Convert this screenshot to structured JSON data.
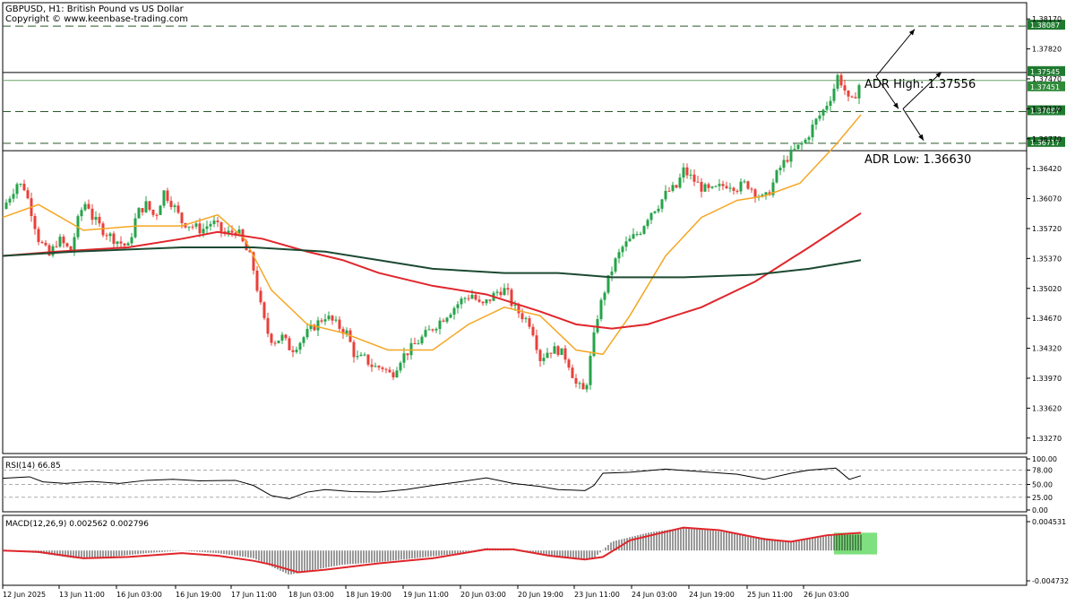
{
  "header": {
    "title": "GBPUSD, H1:  British Pound vs US Dollar",
    "copyright": "Copyright © www.keenbase-trading.com"
  },
  "colors": {
    "bull": "#26a34a",
    "bear": "#e8403a",
    "ma_fast": "#f5a623",
    "ma_mid": "#e0262b",
    "ma_slow": "#1c4a32",
    "level_tag_bg": "#1f7a2f",
    "adr_line": "#555555",
    "histogram_highlight": "#7ee07e"
  },
  "chart_data": {
    "type": "candlestick",
    "symbol": "GBPUSD",
    "timeframe": "H1",
    "ylim": [
      1.331,
      1.3835
    ],
    "y_ticks": [
      "1.38170",
      "1.37820",
      "1.37470",
      "1.37120",
      "1.36770",
      "1.36420",
      "1.36070",
      "1.35720",
      "1.35370",
      "1.35020",
      "1.34670",
      "1.34320",
      "1.33970",
      "1.33620",
      "1.33270"
    ],
    "x_ticks": [
      "12 Jun 2025",
      "13 Jun 11:00",
      "16 Jun 03:00",
      "16 Jun 19:00",
      "17 Jun 11:00",
      "18 Jun 03:00",
      "18 Jun 19:00",
      "19 Jun 11:00",
      "20 Jun 03:00",
      "20 Jun 19:00",
      "23 Jun 11:00",
      "24 Jun 03:00",
      "24 Jun 19:00",
      "25 Jun 11:00",
      "26 Jun 03:00"
    ],
    "close_path": [
      [
        0,
        1.3595
      ],
      [
        16,
        1.3625
      ],
      [
        24,
        1.362
      ],
      [
        30,
        1.36
      ],
      [
        40,
        1.356
      ],
      [
        52,
        1.354
      ],
      [
        62,
        1.356
      ],
      [
        76,
        1.3545
      ],
      [
        86,
        1.359
      ],
      [
        94,
        1.3605
      ],
      [
        100,
        1.3585
      ],
      [
        112,
        1.357
      ],
      [
        124,
        1.356
      ],
      [
        140,
        1.355
      ],
      [
        150,
        1.359
      ],
      [
        160,
        1.36
      ],
      [
        170,
        1.3585
      ],
      [
        180,
        1.3615
      ],
      [
        190,
        1.36
      ],
      [
        200,
        1.358
      ],
      [
        212,
        1.3575
      ],
      [
        222,
        1.357
      ],
      [
        234,
        1.358
      ],
      [
        248,
        1.3565
      ],
      [
        262,
        1.357
      ],
      [
        270,
        1.355
      ],
      [
        278,
        1.3535
      ],
      [
        290,
        1.347
      ],
      [
        296,
        1.345
      ],
      [
        302,
        1.344
      ],
      [
        312,
        1.3445
      ],
      [
        322,
        1.343
      ],
      [
        332,
        1.344
      ],
      [
        340,
        1.345
      ],
      [
        350,
        1.346
      ],
      [
        360,
        1.347
      ],
      [
        372,
        1.346
      ],
      [
        384,
        1.345
      ],
      [
        394,
        1.342
      ],
      [
        404,
        1.342
      ],
      [
        414,
        1.341
      ],
      [
        424,
        1.341
      ],
      [
        434,
        1.34
      ],
      [
        444,
        1.342
      ],
      [
        454,
        1.343
      ],
      [
        464,
        1.344
      ],
      [
        474,
        1.345
      ],
      [
        484,
        1.346
      ],
      [
        494,
        1.347
      ],
      [
        504,
        1.348
      ],
      [
        514,
        1.349
      ],
      [
        524,
        1.3495
      ],
      [
        534,
        1.348
      ],
      [
        544,
        1.349
      ],
      [
        554,
        1.35
      ],
      [
        562,
        1.35
      ],
      [
        570,
        1.348
      ],
      [
        580,
        1.347
      ],
      [
        590,
        1.346
      ],
      [
        600,
        1.342
      ],
      [
        610,
        1.343
      ],
      [
        620,
        1.343
      ],
      [
        630,
        1.342
      ],
      [
        640,
        1.339
      ],
      [
        650,
        1.338
      ],
      [
        656,
        1.342
      ],
      [
        664,
        1.347
      ],
      [
        672,
        1.35
      ],
      [
        682,
        1.353
      ],
      [
        692,
        1.355
      ],
      [
        702,
        1.356
      ],
      [
        712,
        1.357
      ],
      [
        722,
        1.359
      ],
      [
        732,
        1.36
      ],
      [
        742,
        1.3615
      ],
      [
        752,
        1.362
      ],
      [
        760,
        1.364
      ],
      [
        770,
        1.363
      ],
      [
        780,
        1.362
      ],
      [
        790,
        1.3615
      ],
      [
        800,
        1.362
      ],
      [
        810,
        1.3625
      ],
      [
        820,
        1.362
      ],
      [
        830,
        1.3625
      ],
      [
        840,
        1.3615
      ],
      [
        850,
        1.3605
      ],
      [
        858,
        1.362
      ],
      [
        866,
        1.364
      ],
      [
        876,
        1.3655
      ],
      [
        886,
        1.3665
      ],
      [
        896,
        1.3675
      ],
      [
        906,
        1.3695
      ],
      [
        916,
        1.371
      ],
      [
        926,
        1.373
      ],
      [
        932,
        1.375
      ],
      [
        938,
        1.374
      ],
      [
        946,
        1.3715
      ],
      [
        952,
        1.373
      ],
      [
        958,
        1.3745
      ]
    ],
    "series": [
      {
        "points": [
          [
            0,
            1.3585
          ],
          [
            40,
            1.36
          ],
          [
            90,
            1.357
          ],
          [
            150,
            1.3575
          ],
          [
            200,
            1.3575
          ],
          [
            240,
            1.3588
          ],
          [
            270,
            1.356
          ],
          [
            300,
            1.35
          ],
          [
            340,
            1.346
          ],
          [
            380,
            1.345
          ],
          [
            430,
            1.343
          ],
          [
            480,
            1.343
          ],
          [
            520,
            1.346
          ],
          [
            560,
            1.348
          ],
          [
            600,
            1.347
          ],
          [
            640,
            1.343
          ],
          [
            670,
            1.3425
          ],
          [
            700,
            1.347
          ],
          [
            740,
            1.354
          ],
          [
            780,
            1.3585
          ],
          [
            820,
            1.3605
          ],
          [
            850,
            1.361
          ],
          [
            890,
            1.3625
          ],
          [
            930,
            1.367
          ],
          [
            958,
            1.3705
          ]
        ]
      },
      {
        "points": [
          [
            0,
            1.354
          ],
          [
            60,
            1.3545
          ],
          [
            140,
            1.355
          ],
          [
            200,
            1.356
          ],
          [
            240,
            1.3568
          ],
          [
            290,
            1.356
          ],
          [
            340,
            1.3545
          ],
          [
            380,
            1.3535
          ],
          [
            420,
            1.352
          ],
          [
            480,
            1.3505
          ],
          [
            540,
            1.3495
          ],
          [
            600,
            1.3475
          ],
          [
            640,
            1.346
          ],
          [
            680,
            1.3455
          ],
          [
            720,
            1.346
          ],
          [
            780,
            1.348
          ],
          [
            840,
            1.351
          ],
          [
            900,
            1.355
          ],
          [
            958,
            1.359
          ]
        ]
      },
      {
        "points": [
          [
            0,
            1.354
          ],
          [
            80,
            1.3545
          ],
          [
            200,
            1.355
          ],
          [
            280,
            1.355
          ],
          [
            360,
            1.3545
          ],
          [
            420,
            1.3535
          ],
          [
            480,
            1.3525
          ],
          [
            560,
            1.352
          ],
          [
            620,
            1.352
          ],
          [
            680,
            1.3515
          ],
          [
            760,
            1.3515
          ],
          [
            840,
            1.3518
          ],
          [
            900,
            1.3525
          ],
          [
            958,
            1.3535
          ]
        ]
      }
    ],
    "levels": [
      {
        "value": 1.38087,
        "label": "1.38087",
        "style": "dashed"
      },
      {
        "value": 1.37545,
        "label": "1.37545",
        "style": "solid"
      },
      {
        "value": 1.37451,
        "label": "1.37451",
        "style": "current"
      },
      {
        "value": 1.37087,
        "label": "1.37087",
        "style": "dashed"
      },
      {
        "value": 1.36717,
        "label": "1.36717",
        "style": "dashed"
      },
      {
        "value": 1.3663,
        "label": "",
        "style": "solid"
      }
    ],
    "annotations": [
      {
        "text": "ADR High: 1.37556"
      },
      {
        "text": "ADR Low: 1.36630"
      }
    ],
    "arrows": [
      {
        "from": [
          975,
          1.375
        ],
        "to": [
          1018,
          1.3805
        ]
      },
      {
        "from": [
          975,
          1.375
        ],
        "to": [
          1000,
          1.3712
        ]
      },
      {
        "from": [
          1005,
          1.3712
        ],
        "to": [
          1048,
          1.3755
        ]
      },
      {
        "from": [
          1005,
          1.3712
        ],
        "to": [
          1028,
          1.3675
        ]
      }
    ],
    "rsi": {
      "label": "RSI(14) 66.85",
      "ylim": [
        0,
        100
      ],
      "ticks": [
        "100.00",
        "78.00",
        "50.00",
        "25.00",
        "0.00"
      ],
      "path": [
        [
          0,
          62
        ],
        [
          30,
          65
        ],
        [
          45,
          55
        ],
        [
          70,
          52
        ],
        [
          100,
          56
        ],
        [
          130,
          52
        ],
        [
          160,
          58
        ],
        [
          190,
          60
        ],
        [
          220,
          57
        ],
        [
          260,
          58
        ],
        [
          280,
          48
        ],
        [
          300,
          28
        ],
        [
          320,
          22
        ],
        [
          340,
          35
        ],
        [
          360,
          40
        ],
        [
          390,
          36
        ],
        [
          420,
          35
        ],
        [
          450,
          40
        ],
        [
          480,
          48
        ],
        [
          510,
          55
        ],
        [
          540,
          63
        ],
        [
          570,
          52
        ],
        [
          600,
          46
        ],
        [
          620,
          40
        ],
        [
          650,
          38
        ],
        [
          660,
          48
        ],
        [
          670,
          72
        ],
        [
          700,
          74
        ],
        [
          740,
          80
        ],
        [
          780,
          75
        ],
        [
          820,
          70
        ],
        [
          850,
          60
        ],
        [
          880,
          72
        ],
        [
          900,
          78
        ],
        [
          930,
          82
        ],
        [
          945,
          60
        ],
        [
          958,
          67
        ]
      ]
    },
    "macd": {
      "label": "MACD(12,26,9) 0.002562 0.002796",
      "ylim": [
        -0.004732,
        0.004531
      ],
      "ticks": [
        "0.004531",
        "-0.004732"
      ],
      "hist": [
        [
          0,
          0.0
        ],
        [
          40,
          -0.0004
        ],
        [
          80,
          -0.0012
        ],
        [
          120,
          -0.001
        ],
        [
          160,
          -0.0004
        ],
        [
          200,
          0.0
        ],
        [
          240,
          -0.0004
        ],
        [
          280,
          -0.0012
        ],
        [
          300,
          -0.0025
        ],
        [
          320,
          -0.0038
        ],
        [
          340,
          -0.0032
        ],
        [
          380,
          -0.0022
        ],
        [
          420,
          -0.0018
        ],
        [
          460,
          -0.0012
        ],
        [
          500,
          -0.0006
        ],
        [
          540,
          0.0004
        ],
        [
          570,
          0.0
        ],
        [
          600,
          -0.0006
        ],
        [
          640,
          -0.0014
        ],
        [
          660,
          -0.0012
        ],
        [
          680,
          0.0014
        ],
        [
          720,
          0.0028
        ],
        [
          760,
          0.0036
        ],
        [
          800,
          0.003
        ],
        [
          840,
          0.0022
        ],
        [
          880,
          0.0014
        ],
        [
          920,
          0.0024
        ],
        [
          958,
          0.0025
        ]
      ],
      "signal": [
        [
          0,
          0.0
        ],
        [
          40,
          -0.0002
        ],
        [
          90,
          -0.0012
        ],
        [
          140,
          -0.001
        ],
        [
          200,
          -0.0004
        ],
        [
          240,
          -0.0008
        ],
        [
          280,
          -0.0016
        ],
        [
          300,
          -0.0022
        ],
        [
          330,
          -0.0034
        ],
        [
          360,
          -0.003
        ],
        [
          420,
          -0.002
        ],
        [
          480,
          -0.0012
        ],
        [
          540,
          0.0002
        ],
        [
          570,
          0.0002
        ],
        [
          610,
          -0.0008
        ],
        [
          650,
          -0.0014
        ],
        [
          670,
          -0.001
        ],
        [
          700,
          0.0016
        ],
        [
          760,
          0.0036
        ],
        [
          800,
          0.0032
        ],
        [
          850,
          0.0018
        ],
        [
          880,
          0.0014
        ],
        [
          920,
          0.0024
        ],
        [
          958,
          0.0028
        ]
      ]
    }
  }
}
